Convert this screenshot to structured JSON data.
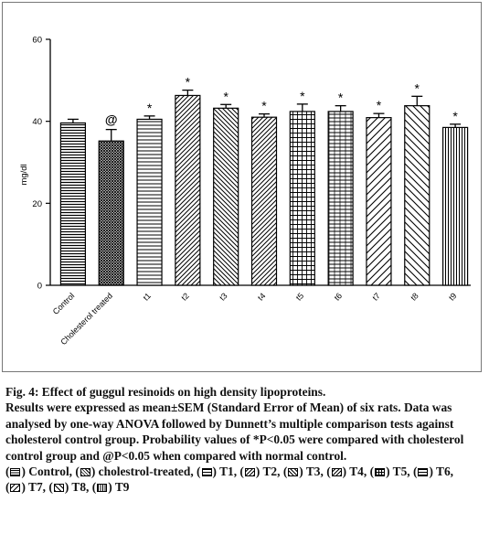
{
  "chart_data": {
    "type": "bar",
    "categories": [
      "Control",
      "Cholesterol treated",
      "t1",
      "t2",
      "t3",
      "t4",
      "t5",
      "t6",
      "t7",
      "t8",
      "t9"
    ],
    "values": [
      39.6,
      35.2,
      40.5,
      46.3,
      43.2,
      41.0,
      42.4,
      42.4,
      40.9,
      43.8,
      38.5
    ],
    "errors": [
      0.9,
      2.8,
      0.8,
      1.3,
      0.9,
      0.8,
      1.8,
      1.4,
      1.0,
      2.3,
      0.8
    ],
    "annotations": [
      "",
      "@",
      "*",
      "*",
      "*",
      "*",
      "*",
      "*",
      "*",
      "*",
      "*"
    ],
    "patterns": [
      "hlines-dense",
      "cross-dense",
      "hlines",
      "diag-back",
      "diag",
      "diag-back",
      "grid",
      "hlines-dash",
      "diag-back-wide",
      "diag-wide",
      "vlines"
    ],
    "ylabel": "mg/dl",
    "ylim": [
      0,
      60
    ],
    "yticks": [
      0,
      20,
      40,
      60
    ],
    "grid": false
  },
  "caption": {
    "title": "Fig. 4: Effect of guggul resinoids on high density lipoproteins.",
    "body": "Results were expressed as mean±SEM (Standard Error of Mean) of six rats. Data was analysed by one-way ANOVA followed by Dunnett’s multiple comparison tests against cholesterol control group. Probability values of *P<0.05 were compared with cholesterol control group and @P<0.05 when compared with normal control.",
    "legend": [
      {
        "label": "Control,",
        "pattern": "hlines-dense"
      },
      {
        "label": "cholestrol-treated,",
        "pattern": "cross-dense"
      },
      {
        "label": "T1,",
        "pattern": "hlines"
      },
      {
        "label": "T2,",
        "pattern": "diag-back"
      },
      {
        "label": "T3,",
        "pattern": "diag"
      },
      {
        "label": "T4,",
        "pattern": "diag-back"
      },
      {
        "label": "T5,",
        "pattern": "grid"
      },
      {
        "label": "T6,",
        "pattern": "hlines-dash"
      },
      {
        "label": "T7,",
        "pattern": "diag-back-wide"
      },
      {
        "label": "T8,",
        "pattern": "diag-wide"
      },
      {
        "label": "T9",
        "pattern": "vlines"
      }
    ]
  }
}
